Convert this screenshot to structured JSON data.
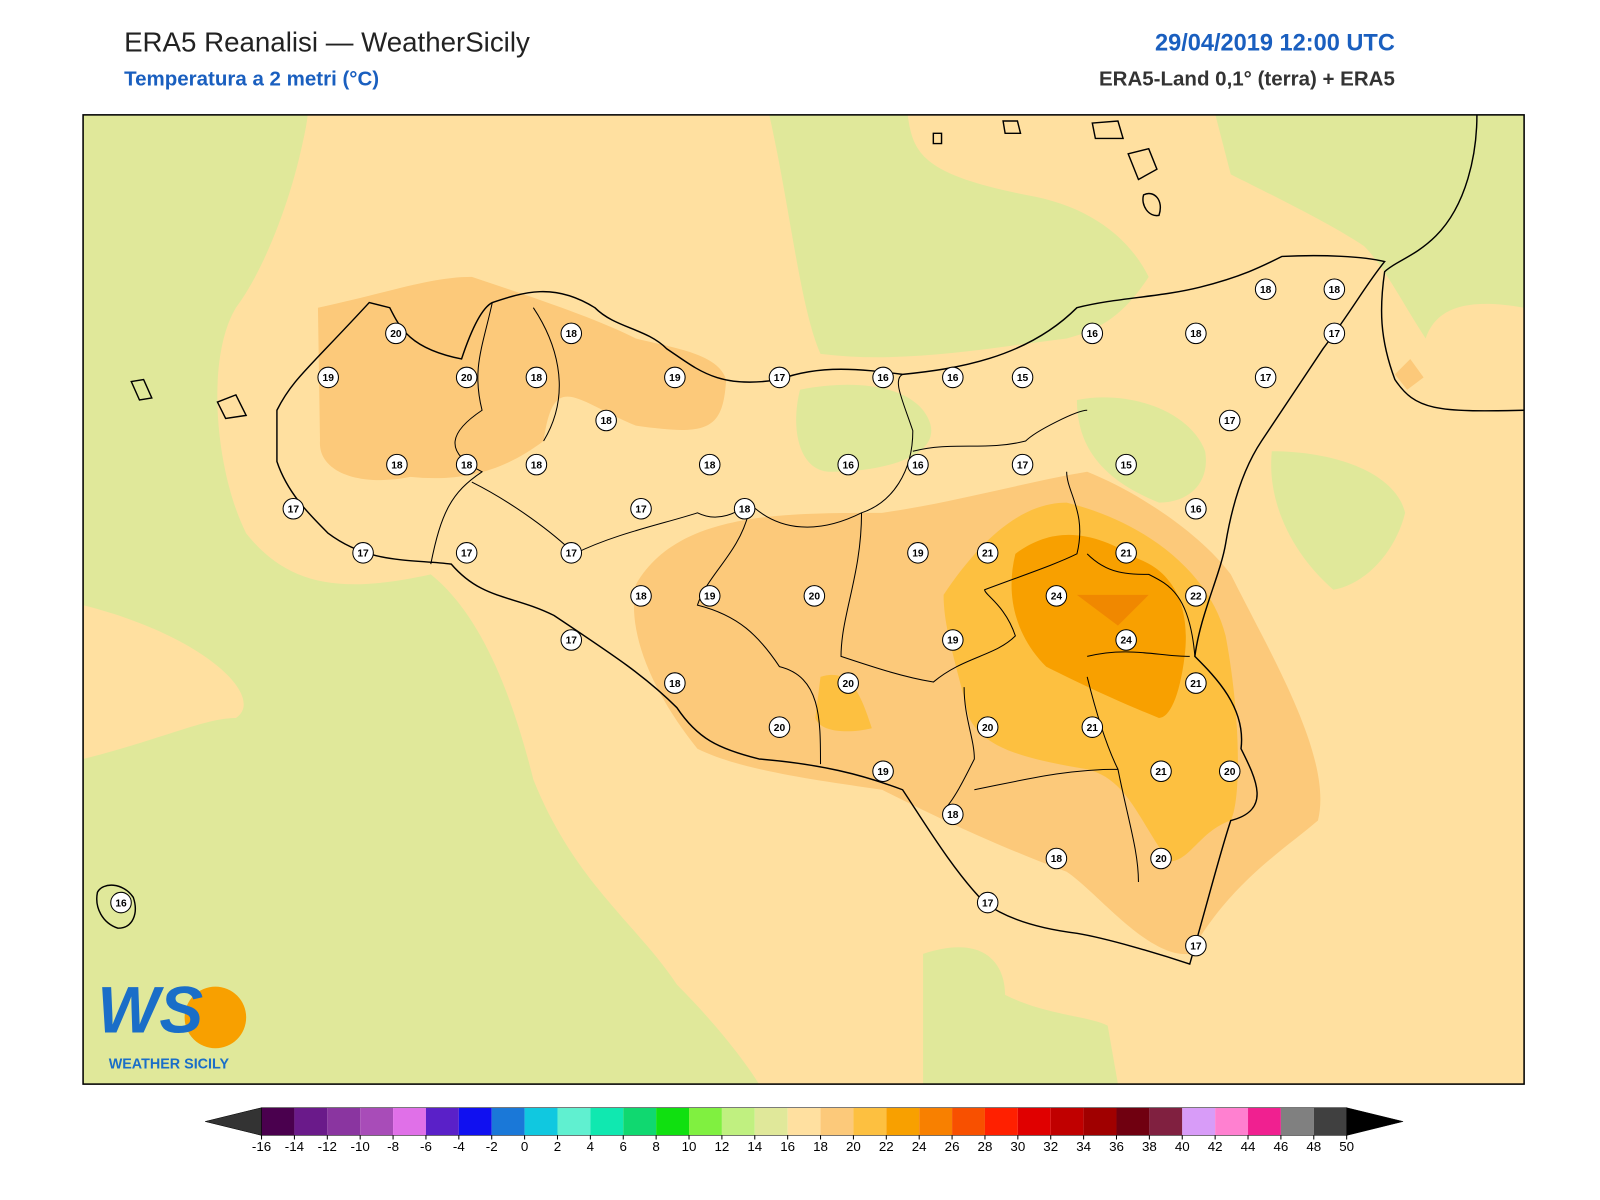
{
  "header": {
    "title": "ERA5 Reanalisi — WeatherSicily",
    "subtitle": "Temperatura a 2 metri (°C)",
    "datetime": "29/04/2019 12:00 UTC",
    "source": "ERA5-Land 0,1° (terra) + ERA5"
  },
  "map": {
    "stations": {
      "values": [
        20,
        18,
        19,
        20,
        18,
        19,
        17,
        16,
        16,
        15,
        16,
        18,
        18,
        18,
        17,
        17,
        17,
        18,
        18,
        18,
        18,
        18,
        16,
        16,
        17,
        15,
        16,
        17,
        17,
        18,
        17,
        17,
        17,
        19,
        21,
        21,
        18,
        19,
        20,
        24,
        22,
        17,
        19,
        24,
        18,
        20,
        21,
        20,
        20,
        21,
        19,
        21,
        20,
        18,
        18,
        20,
        17,
        17,
        16
      ]
    }
  },
  "colorbar": {
    "ticks": [
      -16,
      -14,
      -12,
      -10,
      -8,
      -6,
      -4,
      -2,
      0,
      2,
      4,
      6,
      8,
      10,
      12,
      14,
      16,
      18,
      20,
      22,
      24,
      26,
      28,
      30,
      32,
      34,
      36,
      38,
      40,
      42,
      44,
      46,
      48,
      50
    ],
    "colors": [
      "#4a004e",
      "#6a1a8a",
      "#8a35a0",
      "#a84cb8",
      "#e070e8",
      "#5a20c8",
      "#1010f0",
      "#1a78d8",
      "#10c8e0",
      "#60f0d0",
      "#10e8b0",
      "#10d870",
      "#10e010",
      "#80f040",
      "#c0f080",
      "#e0e89a",
      "#ffe0a0",
      "#fcc97a",
      "#fdc040",
      "#f8a000",
      "#f88000",
      "#f85000",
      "#ff2000",
      "#e00000",
      "#c00000",
      "#a00000",
      "#700010",
      "#802040",
      "#d89cf8",
      "#ff80d0",
      "#f02090",
      "#808080",
      "#404040"
    ],
    "under_color": "#333333",
    "over_color": "#000000"
  },
  "logo": {
    "mark": "WS",
    "name": "WEATHER SICILY"
  }
}
